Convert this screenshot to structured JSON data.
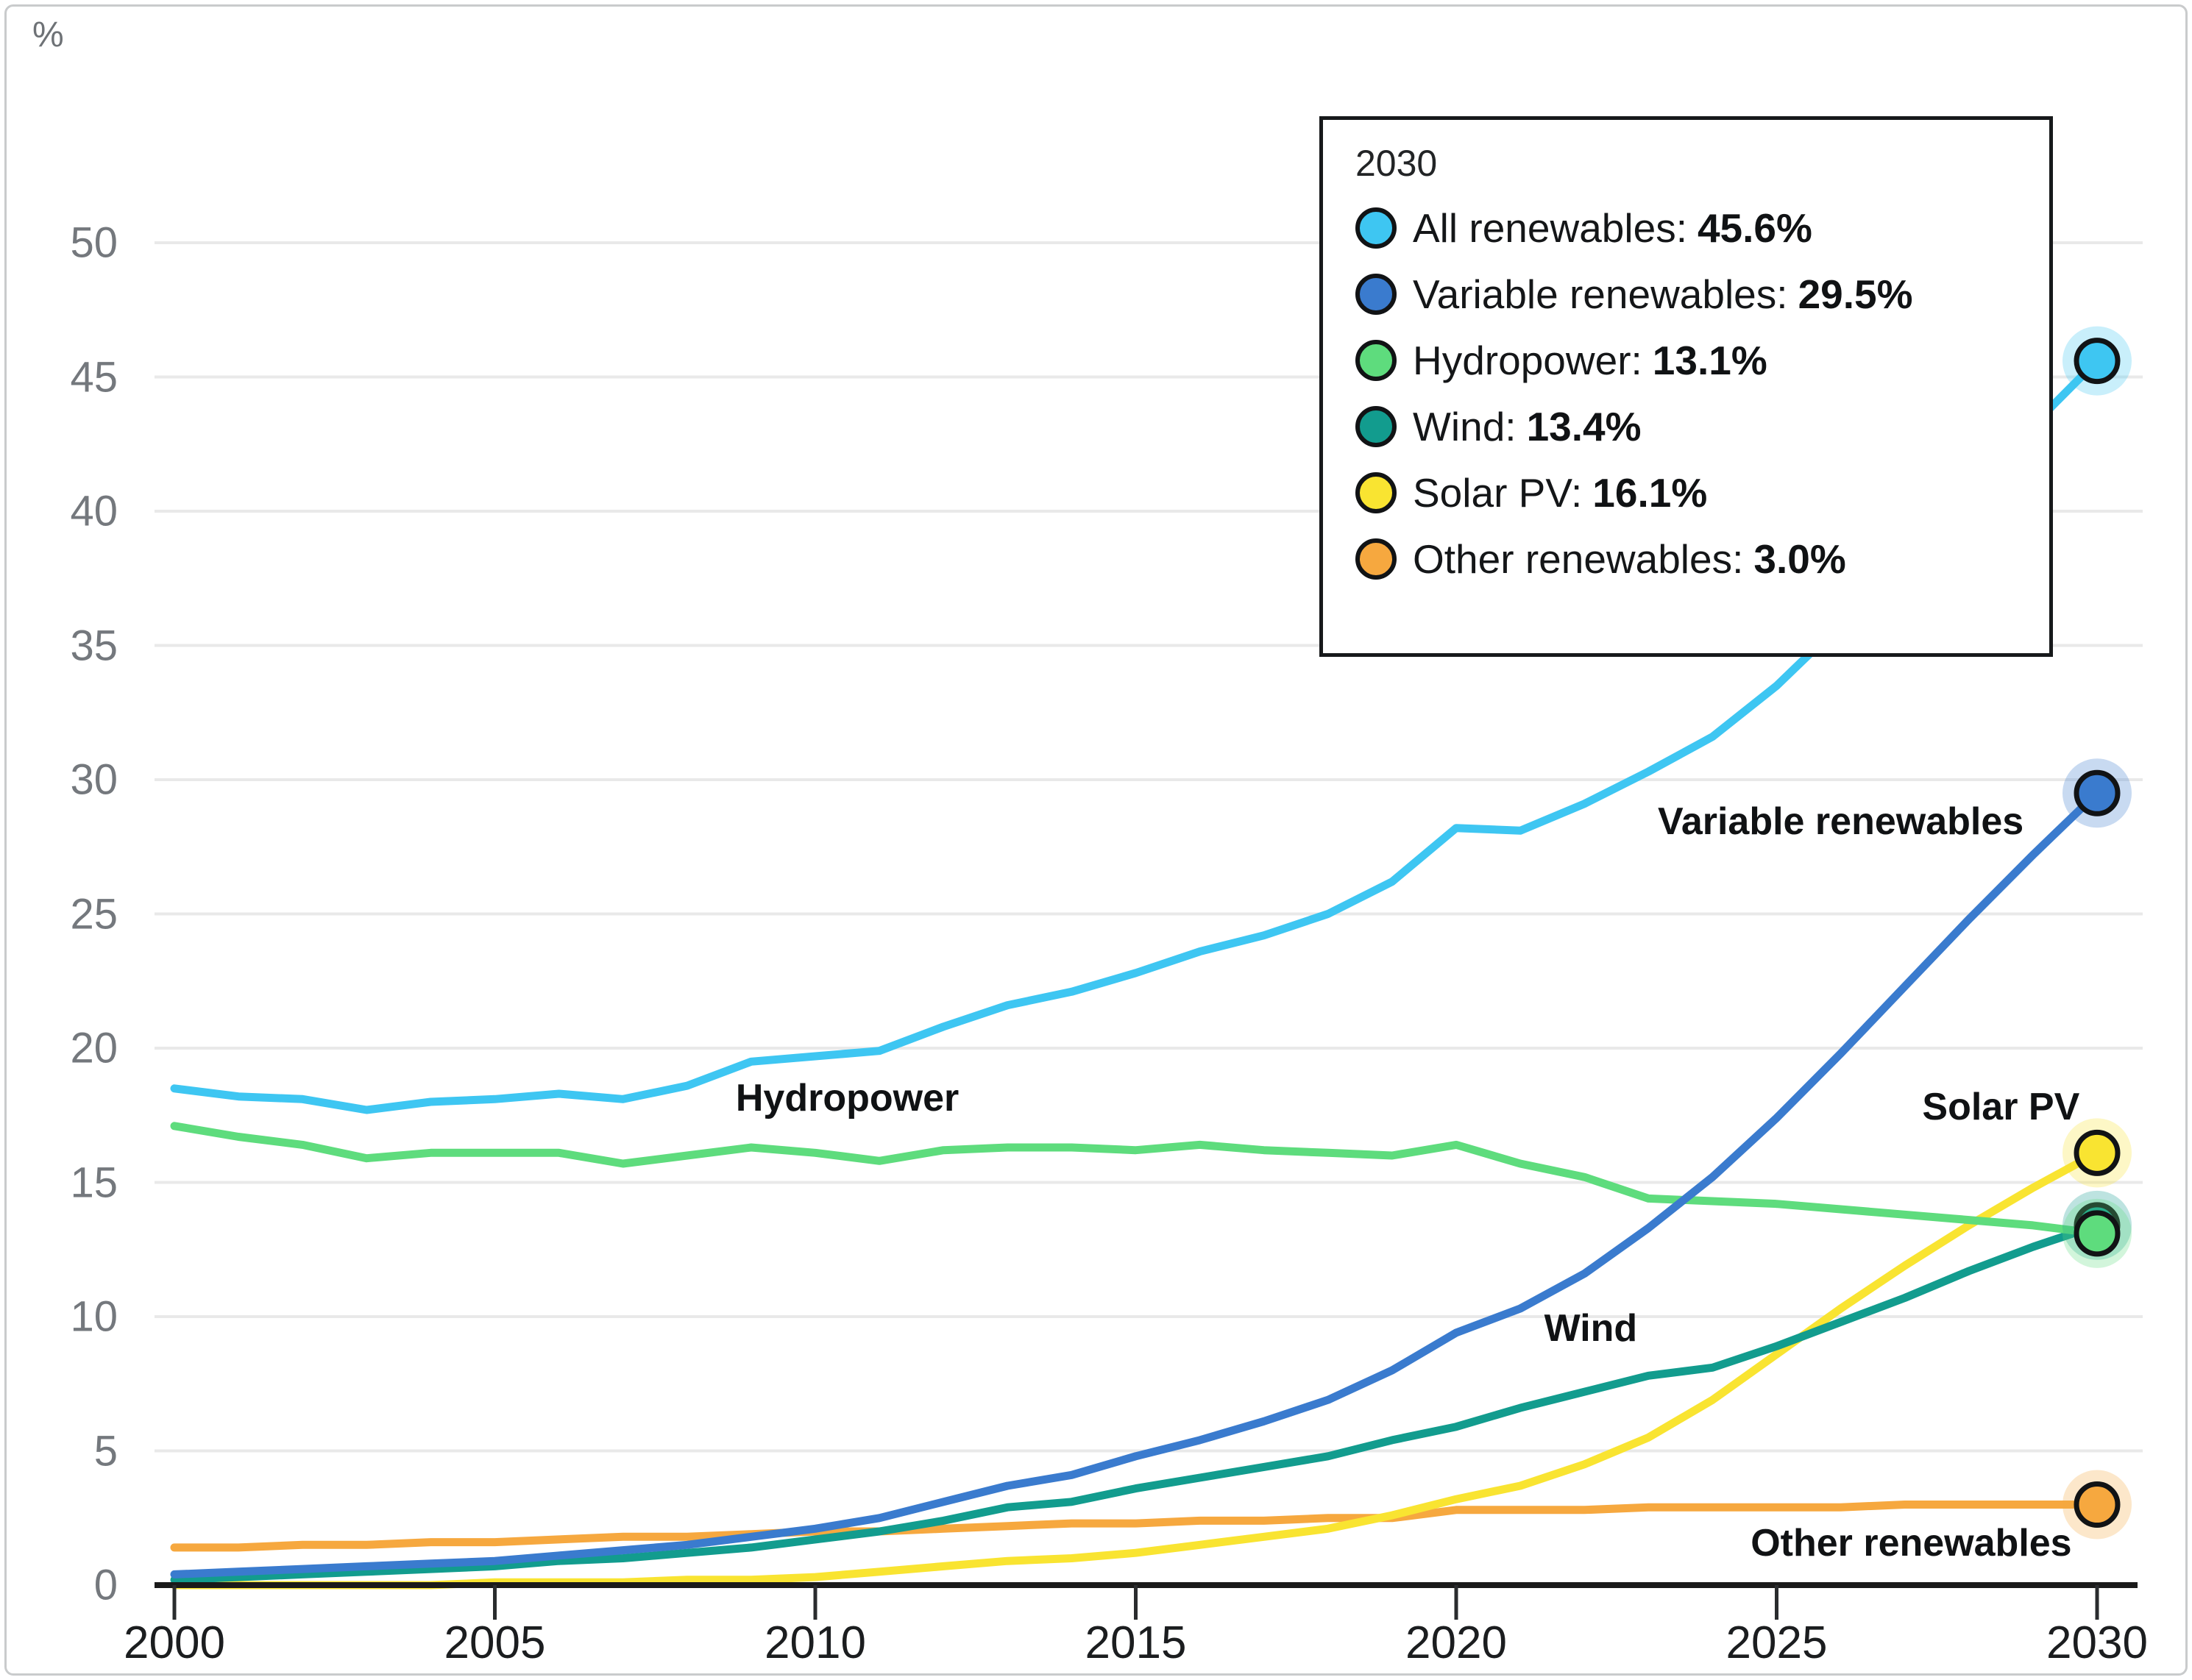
{
  "tooltip": {
    "title": "2030",
    "items": [
      {
        "label": "All renewables:",
        "value": "45.6%",
        "color": "#3ec6f2"
      },
      {
        "label": "Variable renewables:",
        "value": "29.5%",
        "color": "#3a7bce"
      },
      {
        "label": "Hydropower:",
        "value": "13.1%",
        "color": "#5edc7d"
      },
      {
        "label": "Wind:",
        "value": "13.4%",
        "color": "#129c8e"
      },
      {
        "label": "Solar PV:",
        "value": "16.1%",
        "color": "#f9e431"
      },
      {
        "label": "Other renewables:",
        "value": "3.0%",
        "color": "#f6a83f"
      }
    ]
  },
  "chart_data": {
    "type": "line",
    "title": "",
    "xlabel": "",
    "ylabel": "%",
    "xlim": [
      2000,
      2030
    ],
    "ylim": [
      0,
      52
    ],
    "grid": true,
    "legend_position": "top-right tooltip box",
    "xticks": [
      2000,
      2005,
      2010,
      2015,
      2020,
      2025,
      2030
    ],
    "yticks": [
      0,
      5,
      10,
      15,
      20,
      25,
      30,
      35,
      40,
      45,
      50
    ],
    "x": [
      2000,
      2001,
      2002,
      2003,
      2004,
      2005,
      2006,
      2007,
      2008,
      2009,
      2010,
      2011,
      2012,
      2013,
      2014,
      2015,
      2016,
      2017,
      2018,
      2019,
      2020,
      2021,
      2022,
      2023,
      2024,
      2025,
      2026,
      2027,
      2028,
      2029,
      2030
    ],
    "series": [
      {
        "name": "All renewables",
        "color": "#3ec6f2",
        "end_value": 45.6,
        "values": [
          18.5,
          18.2,
          18.1,
          17.7,
          18.0,
          18.1,
          18.3,
          18.1,
          18.6,
          19.5,
          19.7,
          19.9,
          20.8,
          21.6,
          22.1,
          22.8,
          23.6,
          24.2,
          25.0,
          26.2,
          28.2,
          28.1,
          29.1,
          30.3,
          31.6,
          33.5,
          35.8,
          38.2,
          40.7,
          43.2,
          45.6
        ]
      },
      {
        "name": "Variable renewables",
        "color": "#3a7bce",
        "end_value": 29.5,
        "values": [
          0.4,
          0.5,
          0.6,
          0.7,
          0.8,
          0.9,
          1.1,
          1.3,
          1.5,
          1.8,
          2.1,
          2.5,
          3.1,
          3.7,
          4.1,
          4.8,
          5.4,
          6.1,
          6.9,
          8.0,
          9.4,
          10.3,
          11.6,
          13.3,
          15.2,
          17.4,
          19.8,
          22.3,
          24.8,
          27.2,
          29.5
        ]
      },
      {
        "name": "Hydropower",
        "color": "#5edc7d",
        "end_value": 13.1,
        "values": [
          17.1,
          16.7,
          16.4,
          15.9,
          16.1,
          16.1,
          16.1,
          15.7,
          16.0,
          16.3,
          16.1,
          15.8,
          16.2,
          16.3,
          16.3,
          16.2,
          16.4,
          16.2,
          16.1,
          16.0,
          16.4,
          15.7,
          15.2,
          14.4,
          14.3,
          14.2,
          14.0,
          13.8,
          13.6,
          13.4,
          13.1
        ]
      },
      {
        "name": "Wind",
        "color": "#129c8e",
        "end_value": 13.4,
        "values": [
          0.2,
          0.3,
          0.4,
          0.5,
          0.6,
          0.7,
          0.9,
          1.0,
          1.2,
          1.4,
          1.7,
          2.0,
          2.4,
          2.9,
          3.1,
          3.6,
          4.0,
          4.4,
          4.8,
          5.4,
          5.9,
          6.6,
          7.2,
          7.8,
          8.1,
          8.9,
          9.8,
          10.7,
          11.7,
          12.6,
          13.4
        ]
      },
      {
        "name": "Solar PV",
        "color": "#f9e431",
        "end_value": 16.1,
        "values": [
          0.0,
          0.0,
          0.0,
          0.0,
          0.0,
          0.1,
          0.1,
          0.1,
          0.2,
          0.2,
          0.3,
          0.5,
          0.7,
          0.9,
          1.0,
          1.2,
          1.5,
          1.8,
          2.1,
          2.6,
          3.2,
          3.7,
          4.5,
          5.5,
          6.9,
          8.6,
          10.3,
          11.9,
          13.4,
          14.8,
          16.1
        ]
      },
      {
        "name": "Other renewables",
        "color": "#f6a83f",
        "end_value": 3.0,
        "values": [
          1.4,
          1.4,
          1.5,
          1.5,
          1.6,
          1.6,
          1.7,
          1.8,
          1.8,
          1.9,
          2.0,
          2.0,
          2.1,
          2.2,
          2.3,
          2.3,
          2.4,
          2.4,
          2.5,
          2.5,
          2.8,
          2.8,
          2.8,
          2.9,
          2.9,
          2.9,
          2.9,
          3.0,
          3.0,
          3.0,
          3.0
        ]
      }
    ],
    "annotations": [
      {
        "text": "Hydropower",
        "year": 2010.5,
        "value": 18.15
      },
      {
        "text": "Variable renewables",
        "year": 2026.0,
        "value": 28.45
      },
      {
        "text": "Wind",
        "year": 2022.1,
        "value": 9.55
      },
      {
        "text": "Solar PV",
        "year": 2028.5,
        "value": 17.8
      },
      {
        "text": "Other renewables",
        "year": 2027.1,
        "value": 1.55
      }
    ]
  }
}
